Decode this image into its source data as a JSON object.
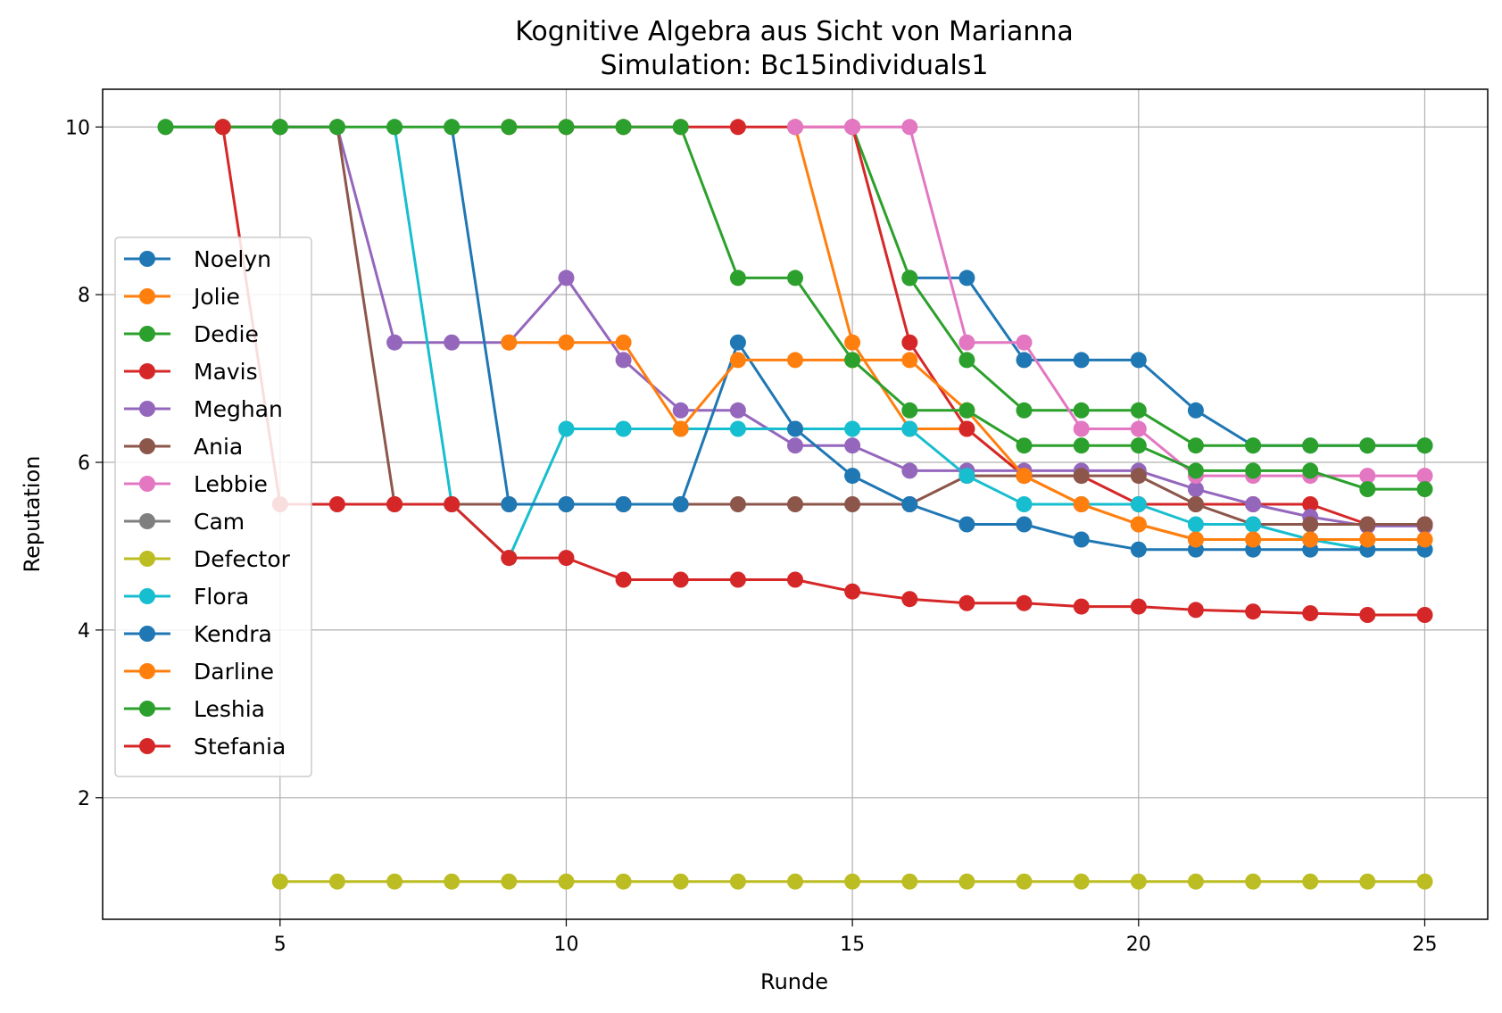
{
  "chart_data": {
    "type": "line",
    "title": "Kognitive Algebra aus Sicht von Marianna",
    "subtitle": "Simulation: Bc15individuals1",
    "xlabel": "Runde",
    "ylabel": "Reputation",
    "xlim": [
      1.9,
      26.1
    ],
    "ylim": [
      0.55,
      10.45
    ],
    "xticks": [
      5,
      10,
      15,
      20,
      25
    ],
    "yticks": [
      2,
      4,
      6,
      8,
      10
    ],
    "grid": true,
    "legend_position": "center-left",
    "series": [
      {
        "name": "Noelyn",
        "color": "#1f77b4",
        "x": [
          16,
          17,
          18,
          19,
          20,
          21,
          22,
          23,
          24,
          25
        ],
        "y": [
          8.2,
          8.2,
          7.22,
          7.22,
          7.22,
          6.62,
          6.2,
          6.2,
          6.2,
          6.2
        ]
      },
      {
        "name": "Jolie",
        "color": "#ff7f0e",
        "x": [
          14,
          15,
          16,
          17,
          18,
          19,
          20,
          21,
          22,
          23,
          24,
          25
        ],
        "y": [
          10,
          7.43,
          6.4,
          6.4,
          5.84,
          5.5,
          5.26,
          5.08,
          5.08,
          5.08,
          5.08,
          5.08
        ]
      },
      {
        "name": "Dedie",
        "color": "#2ca02c",
        "x": [
          15,
          16,
          17,
          18,
          19,
          20,
          21,
          22,
          23,
          24,
          25
        ],
        "y": [
          10,
          8.2,
          7.22,
          6.62,
          6.62,
          6.62,
          6.2,
          6.2,
          6.2,
          6.2,
          6.2
        ]
      },
      {
        "name": "Mavis",
        "color": "#d62728",
        "x": [
          9,
          10,
          11,
          12,
          13,
          14,
          15,
          16,
          17,
          18,
          19,
          20,
          21,
          22,
          23,
          24,
          25
        ],
        "y": [
          10,
          10,
          10,
          10,
          10,
          10,
          10,
          7.43,
          6.4,
          5.84,
          5.84,
          5.5,
          5.5,
          5.5,
          5.5,
          5.26,
          5.26
        ]
      },
      {
        "name": "Meghan",
        "color": "#9467bd",
        "x": [
          5,
          6,
          7,
          8,
          9,
          10,
          11,
          12,
          13,
          14,
          15,
          16,
          17,
          18,
          19,
          20,
          21,
          22,
          23,
          24,
          25
        ],
        "y": [
          10,
          10,
          7.43,
          7.43,
          7.43,
          8.2,
          7.22,
          6.62,
          6.62,
          6.2,
          6.2,
          5.9,
          5.9,
          5.9,
          5.9,
          5.9,
          5.68,
          5.5,
          5.35,
          5.24,
          5.24
        ]
      },
      {
        "name": "Ania",
        "color": "#8c564b",
        "x": [
          4,
          5,
          6,
          7,
          8,
          9,
          10,
          11,
          12,
          13,
          14,
          15,
          16,
          17,
          18,
          19,
          20,
          21,
          22,
          23,
          24,
          25
        ],
        "y": [
          10,
          10,
          10,
          5.5,
          5.5,
          5.5,
          5.5,
          5.5,
          5.5,
          5.5,
          5.5,
          5.5,
          5.5,
          5.84,
          5.84,
          5.84,
          5.84,
          5.5,
          5.26,
          5.26,
          5.26,
          5.26
        ]
      },
      {
        "name": "Lebbie",
        "color": "#e377c2",
        "x": [
          14,
          15,
          16,
          17,
          18,
          19,
          20,
          21,
          22,
          23,
          24,
          25
        ],
        "y": [
          10,
          10,
          10,
          7.43,
          7.43,
          6.4,
          6.4,
          5.84,
          5.84,
          5.84,
          5.84,
          5.84
        ]
      },
      {
        "name": "Cam",
        "color": "#7f7f7f",
        "x": [
          3,
          4,
          5,
          6
        ],
        "y": [
          10,
          10,
          10,
          10
        ]
      },
      {
        "name": "Defector",
        "color": "#bcbd22",
        "x": [
          5,
          6,
          7,
          8,
          9,
          10,
          11,
          12,
          13,
          14,
          15,
          16,
          17,
          18,
          19,
          20,
          21,
          22,
          23,
          24,
          25
        ],
        "y": [
          1,
          1,
          1,
          1,
          1,
          1,
          1,
          1,
          1,
          1,
          1,
          1,
          1,
          1,
          1,
          1,
          1,
          1,
          1,
          1,
          1
        ]
      },
      {
        "name": "Flora",
        "color": "#17becf",
        "x": [
          7,
          8,
          9,
          10,
          11,
          12,
          13,
          14,
          15,
          16,
          17,
          18,
          19,
          20,
          21,
          22,
          23,
          24,
          25
        ],
        "y": [
          10,
          5.5,
          4.86,
          6.4,
          6.4,
          6.4,
          6.4,
          6.4,
          6.4,
          6.4,
          5.84,
          5.5,
          5.5,
          5.5,
          5.26,
          5.26,
          5.08,
          4.96,
          4.96
        ]
      },
      {
        "name": "Kendra",
        "color": "#1f77b4",
        "x": [
          8,
          9,
          10,
          11,
          12,
          13,
          14,
          15,
          16,
          17,
          18,
          19,
          20,
          21,
          22,
          23,
          24,
          25
        ],
        "y": [
          10,
          5.5,
          5.5,
          5.5,
          5.5,
          7.43,
          6.4,
          5.84,
          5.5,
          5.26,
          5.26,
          5.08,
          4.96,
          4.96,
          4.96,
          4.96,
          4.96,
          4.96
        ]
      },
      {
        "name": "Darline",
        "color": "#ff7f0e",
        "x": [
          9,
          10,
          11,
          12,
          13,
          14,
          15,
          16,
          17,
          18,
          19,
          20,
          21,
          22,
          23,
          24,
          25
        ],
        "y": [
          7.43,
          7.43,
          7.43,
          6.4,
          7.22,
          7.22,
          7.22,
          7.22,
          6.62,
          5.84,
          5.5,
          5.26,
          5.08,
          5.08,
          5.08,
          5.08,
          5.08
        ]
      },
      {
        "name": "Leshia",
        "color": "#2ca02c",
        "x": [
          3,
          4,
          5,
          6,
          7,
          8,
          9,
          10,
          11,
          12,
          13,
          14,
          15,
          16,
          17,
          18,
          19,
          20,
          21,
          22,
          23,
          24,
          25
        ],
        "y": [
          10,
          10,
          10,
          10,
          10,
          10,
          10,
          10,
          10,
          10,
          8.2,
          8.2,
          7.22,
          6.62,
          6.62,
          6.2,
          6.2,
          6.2,
          5.9,
          5.9,
          5.9,
          5.68,
          5.68
        ]
      },
      {
        "name": "Stefania",
        "color": "#d62728",
        "x": [
          4,
          5,
          6,
          7,
          8,
          9,
          10,
          11,
          12,
          13,
          14,
          15,
          16,
          17,
          18,
          19,
          20,
          21,
          22,
          23,
          24,
          25
        ],
        "y": [
          10,
          5.5,
          5.5,
          5.5,
          5.5,
          4.86,
          4.86,
          4.6,
          4.6,
          4.6,
          4.6,
          4.46,
          4.37,
          4.32,
          4.32,
          4.28,
          4.28,
          4.24,
          4.22,
          4.2,
          4.18,
          4.18
        ]
      }
    ]
  }
}
